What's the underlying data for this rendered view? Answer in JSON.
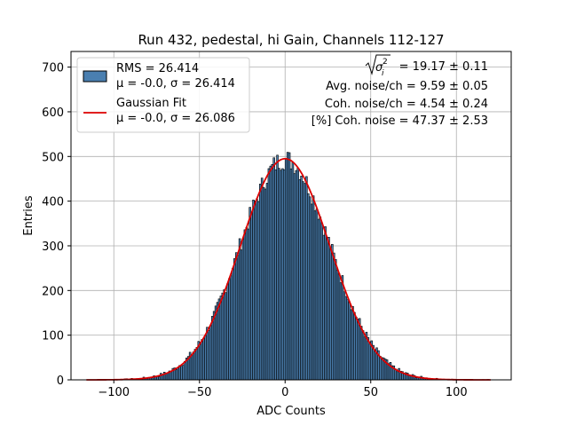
{
  "chart_data": {
    "type": "bar",
    "title": "Run 432, pedestal, hi Gain, Channels 112-127",
    "xlabel": "ADC Counts",
    "ylabel": "Entries",
    "xlim": [
      -125,
      132
    ],
    "ylim": [
      0,
      735
    ],
    "xticks": [
      -100,
      -50,
      0,
      50,
      100
    ],
    "yticks": [
      0,
      100,
      200,
      300,
      400,
      500,
      600,
      700
    ],
    "grid": true,
    "legend_position": "top-left",
    "histogram": {
      "name": "RMS = 26.414",
      "stats": "μ = -0.0, σ = 26.414",
      "bin_range": [
        -116,
        120
      ],
      "bin_width": 1,
      "peak": 494,
      "mean": 0.0,
      "sigma": 26.414,
      "fill_color": "#4a7fb0",
      "edge_color": "#000000"
    },
    "fit": {
      "name": "Gaussian Fit",
      "stats": "μ = -0.0, σ = 26.086",
      "mean": 0.0,
      "sigma": 26.086,
      "amplitude": 495,
      "x_range": [
        -116,
        120
      ],
      "color": "#dd0000"
    },
    "annotations": [
      "= 19.17 ± 0.11",
      "Avg. noise/ch = 9.59 ± 0.05",
      "Coh. noise/ch = 4.54 ± 0.24",
      "[%] Coh. noise = 47.37 ± 2.53"
    ],
    "annotation_symbol": "σ",
    "annotation_subscript": "i",
    "annotation_superscript": "2"
  }
}
